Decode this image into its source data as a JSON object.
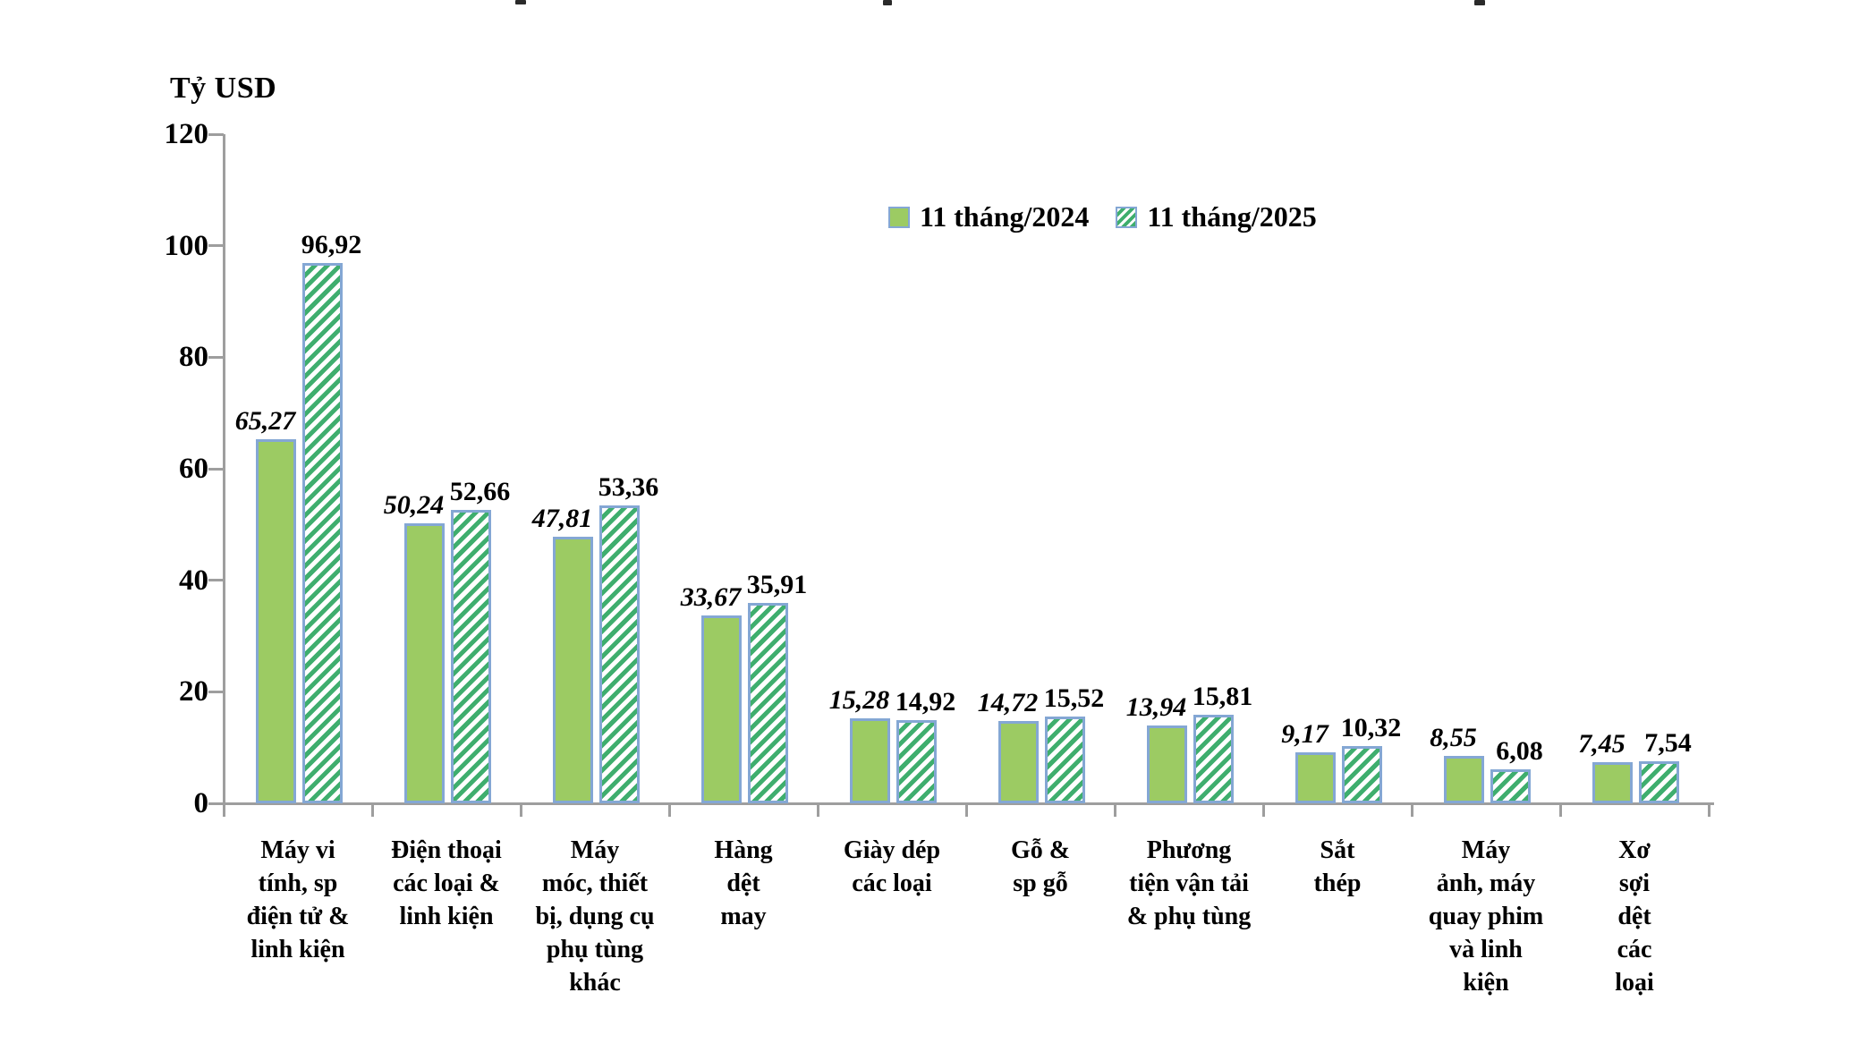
{
  "chart_data": {
    "type": "bar",
    "unit_label": "Tỷ USD",
    "categories": [
      "Máy vi\ntính, sp\nđiện tử &\nlinh kiện",
      "Điện thoại\ncác loại &\nlinh kiện",
      "Máy\nmóc, thiết\nbị, dụng cụ\nphụ tùng\nkhác",
      "Hàng\ndệt\nmay",
      "Giày dép\ncác loại",
      "Gỗ &\nsp gỗ",
      "Phương\ntiện vận tải\n& phụ tùng",
      "Sắt\nthép",
      "Máy\nảnh, máy\nquay phim\nvà linh\nkiện",
      "Xơ\nsợi\ndệt\ncác\nloại"
    ],
    "series": [
      {
        "name": "11 tháng/2024",
        "swatch": "solid",
        "values": [
          65.27,
          50.24,
          47.81,
          33.67,
          15.28,
          14.72,
          13.94,
          9.17,
          8.55,
          7.45
        ],
        "value_labels": [
          "65,27",
          "50,24",
          "47,81",
          "33,67",
          "15,28",
          "14,72",
          "13,94",
          "9,17",
          "8,55",
          "7,45"
        ]
      },
      {
        "name": "11 tháng/2025",
        "swatch": "hatched",
        "values": [
          96.92,
          52.66,
          53.36,
          35.91,
          14.92,
          15.52,
          15.81,
          10.32,
          6.08,
          7.54
        ],
        "value_labels": [
          "96,92",
          "52,66",
          "53,36",
          "35,91",
          "14,92",
          "15,52",
          "15,81",
          "10,32",
          "6,08",
          "7,54"
        ]
      }
    ],
    "ylim": [
      0,
      120
    ],
    "yticks": [
      0,
      20,
      40,
      60,
      80,
      100,
      120
    ],
    "grid": false,
    "legend_position": "top-center"
  },
  "colors": {
    "bar_fill_2024": "#9CCB63",
    "hatch_stripe_2025": "#3FAE6E",
    "bar_border": "#84A7D4",
    "axis_line": "#9E9E9E",
    "text": "#000000"
  }
}
